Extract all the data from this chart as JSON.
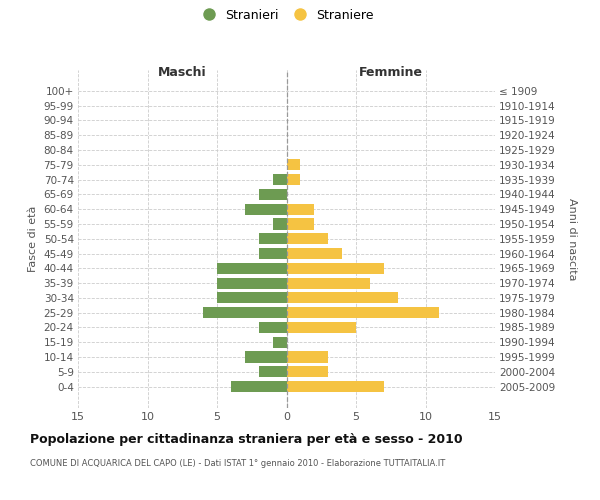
{
  "age_groups": [
    "100+",
    "95-99",
    "90-94",
    "85-89",
    "80-84",
    "75-79",
    "70-74",
    "65-69",
    "60-64",
    "55-59",
    "50-54",
    "45-49",
    "40-44",
    "35-39",
    "30-34",
    "25-29",
    "20-24",
    "15-19",
    "10-14",
    "5-9",
    "0-4"
  ],
  "birth_years": [
    "≤ 1909",
    "1910-1914",
    "1915-1919",
    "1920-1924",
    "1925-1929",
    "1930-1934",
    "1935-1939",
    "1940-1944",
    "1945-1949",
    "1950-1954",
    "1955-1959",
    "1960-1964",
    "1965-1969",
    "1970-1974",
    "1975-1979",
    "1980-1984",
    "1985-1989",
    "1990-1994",
    "1995-1999",
    "2000-2004",
    "2005-2009"
  ],
  "maschi": [
    0,
    0,
    0,
    0,
    0,
    0,
    1,
    2,
    3,
    1,
    2,
    2,
    5,
    5,
    5,
    6,
    2,
    1,
    3,
    2,
    4
  ],
  "femmine": [
    0,
    0,
    0,
    0,
    0,
    1,
    1,
    0,
    2,
    2,
    3,
    4,
    7,
    6,
    8,
    11,
    5,
    0,
    3,
    3,
    7
  ],
  "maschi_color": "#6d9b52",
  "femmine_color": "#f5c342",
  "title": "Popolazione per cittadinanza straniera per età e sesso - 2010",
  "subtitle": "COMUNE DI ACQUARICA DEL CAPO (LE) - Dati ISTAT 1° gennaio 2010 - Elaborazione TUTTAITALIA.IT",
  "ylabel_left": "Fasce di età",
  "ylabel_right": "Anni di nascita",
  "xlabel_maschi": "Maschi",
  "xlabel_femmine": "Femmine",
  "legend_stranieri": "Stranieri",
  "legend_straniere": "Straniere",
  "xlim": 15,
  "bg_color": "#ffffff",
  "grid_color": "#cccccc",
  "bar_height": 0.75
}
